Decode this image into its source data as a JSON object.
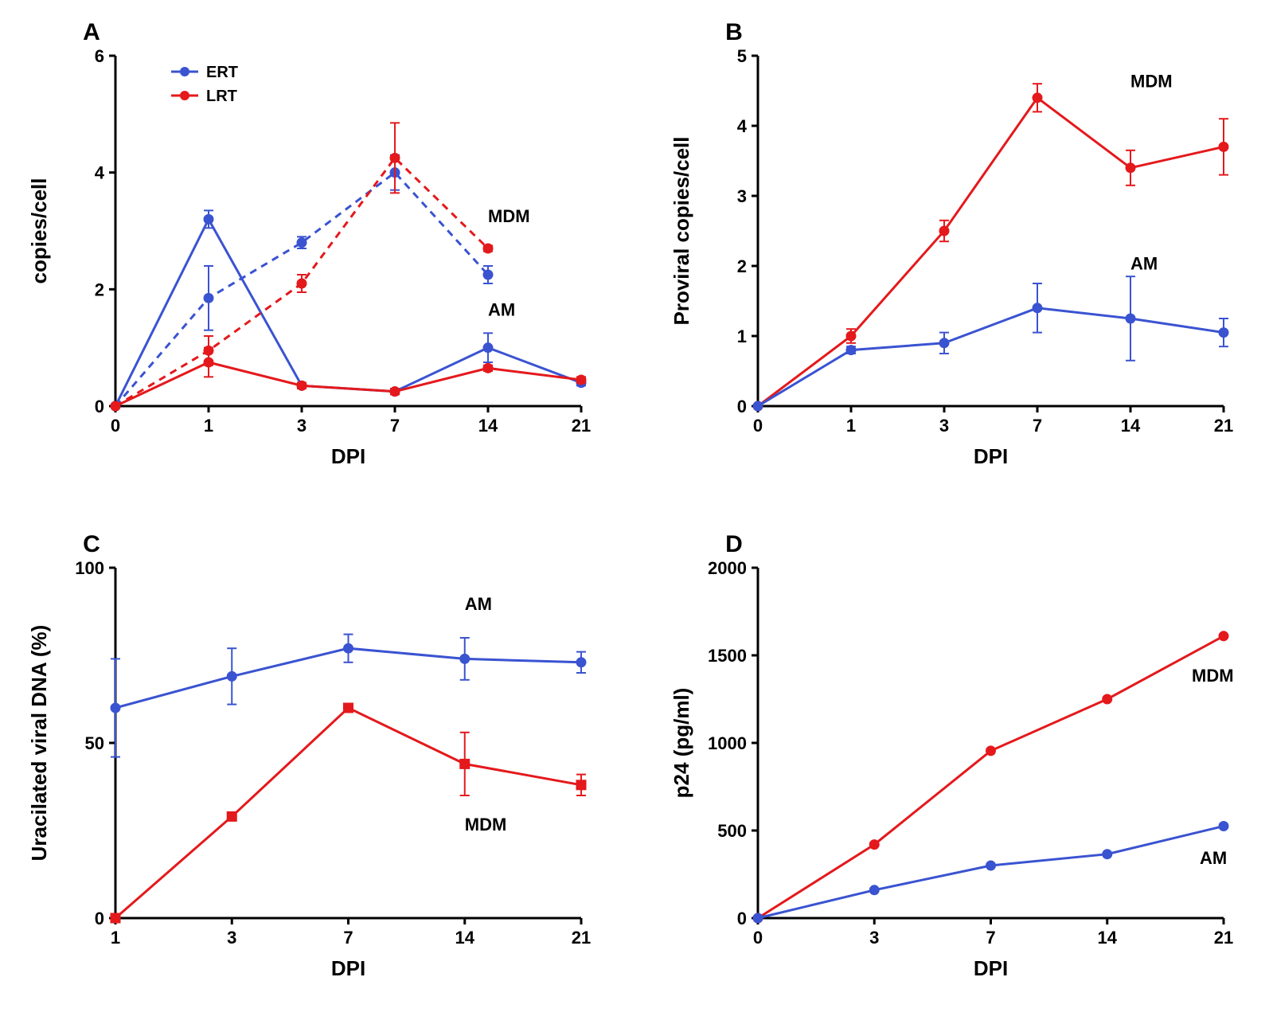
{
  "global": {
    "font_family": "Arial",
    "panel_label_fontsize": 30,
    "panel_label_weight": "bold",
    "axis_label_fontsize": 26,
    "axis_label_weight": "bold",
    "tick_fontsize": 22,
    "annotation_fontsize": 22,
    "annotation_weight": "bold",
    "legend_fontsize": 20,
    "legend_weight": "bold",
    "line_width": 3,
    "marker_radius": 6,
    "errorbar_width": 2,
    "errorbar_cap": 6,
    "axis_color": "#000000",
    "axis_width": 3,
    "tick_length": 8,
    "background": "#ffffff",
    "colors": {
      "blue": "#3a53d1",
      "red": "#e4191c"
    }
  },
  "panelA": {
    "label": "A",
    "xlabel": "DPI",
    "ylabel": "copies/cell",
    "x_categories": [
      0,
      1,
      3,
      7,
      14,
      21
    ],
    "ylim": [
      0,
      6
    ],
    "ytick_step": 2,
    "series": [
      {
        "name": "ERT_AM",
        "color": "#3a53d1",
        "dash": "solid",
        "marker": "circle",
        "x": [
          0,
          1,
          3,
          7,
          14,
          21
        ],
        "y": [
          0,
          3.2,
          0.35,
          0.25,
          1.0,
          0.4
        ],
        "err": [
          0,
          0.15,
          0.05,
          0.05,
          0.25,
          0.05
        ]
      },
      {
        "name": "LRT_AM",
        "color": "#e4191c",
        "dash": "solid",
        "marker": "circle",
        "x": [
          0,
          1,
          3,
          7,
          14,
          21
        ],
        "y": [
          0,
          0.75,
          0.35,
          0.25,
          0.65,
          0.45
        ],
        "err": [
          0,
          0.25,
          0.05,
          0.05,
          0.05,
          0.05
        ]
      },
      {
        "name": "ERT_MDM",
        "color": "#3a53d1",
        "dash": "dashed",
        "marker": "circle",
        "x": [
          0,
          1,
          3,
          7,
          14
        ],
        "y": [
          0,
          1.85,
          2.8,
          4.0,
          2.25
        ],
        "err": [
          0,
          0.55,
          0.1,
          0.3,
          0.15
        ]
      },
      {
        "name": "LRT_MDM",
        "color": "#e4191c",
        "dash": "dashed",
        "marker": "circle",
        "x": [
          0,
          1,
          3,
          7,
          14
        ],
        "y": [
          0,
          0.95,
          2.1,
          4.25,
          2.7
        ],
        "err": [
          0,
          0.25,
          0.15,
          0.6,
          0.05
        ]
      }
    ],
    "legend": {
      "items": [
        {
          "label": "ERT",
          "color": "#3a53d1"
        },
        {
          "label": "LRT",
          "color": "#e4191c"
        }
      ]
    },
    "annotations": [
      {
        "text": "MDM",
        "x_cat": 14,
        "y": 3.15
      },
      {
        "text": "AM",
        "x_cat": 14,
        "y": 1.55
      }
    ]
  },
  "panelB": {
    "label": "B",
    "xlabel": "DPI",
    "ylabel": "Proviral copies/cell",
    "x_categories": [
      0,
      1,
      3,
      7,
      14,
      21
    ],
    "ylim": [
      0,
      5
    ],
    "ytick_step": 1,
    "series": [
      {
        "name": "MDM",
        "color": "#e4191c",
        "dash": "solid",
        "marker": "circle",
        "x": [
          0,
          1,
          3,
          7,
          14,
          21
        ],
        "y": [
          0,
          1.0,
          2.5,
          4.4,
          3.4,
          3.7
        ],
        "err": [
          0,
          0.1,
          0.15,
          0.2,
          0.25,
          0.4
        ]
      },
      {
        "name": "AM",
        "color": "#3a53d1",
        "dash": "solid",
        "marker": "circle",
        "x": [
          0,
          1,
          3,
          7,
          14,
          21
        ],
        "y": [
          0,
          0.8,
          0.9,
          1.4,
          1.25,
          1.05
        ],
        "err": [
          0,
          0.05,
          0.15,
          0.35,
          0.6,
          0.2
        ]
      }
    ],
    "annotations": [
      {
        "text": "MDM",
        "x_cat": 14,
        "y": 4.55
      },
      {
        "text": "AM",
        "x_cat": 14,
        "y": 1.95
      }
    ]
  },
  "panelC": {
    "label": "C",
    "xlabel": "DPI",
    "ylabel": "Uracilated viral DNA (%)",
    "x_categories": [
      1,
      3,
      7,
      14,
      21
    ],
    "ylim": [
      0,
      100
    ],
    "ytick_step": 50,
    "series": [
      {
        "name": "AM",
        "color": "#3a53d1",
        "dash": "solid",
        "marker": "circle",
        "x": [
          1,
          3,
          7,
          14,
          21
        ],
        "y": [
          60,
          69,
          77,
          74,
          73
        ],
        "err": [
          14,
          8,
          4,
          6,
          3
        ]
      },
      {
        "name": "MDM",
        "color": "#e4191c",
        "dash": "solid",
        "marker": "square",
        "x": [
          1,
          3,
          7,
          14,
          21
        ],
        "y": [
          0,
          29,
          60,
          44,
          38
        ],
        "err": [
          0,
          0,
          0,
          9,
          3
        ]
      }
    ],
    "annotations": [
      {
        "text": "AM",
        "x_cat": 14,
        "y": 88
      },
      {
        "text": "MDM",
        "x_cat": 14,
        "y": 25
      }
    ]
  },
  "panelD": {
    "label": "D",
    "xlabel": "DPI",
    "ylabel": "p24 (pg/ml)",
    "x_categories": [
      0,
      3,
      7,
      14,
      21
    ],
    "ylim": [
      0,
      2000
    ],
    "ytick_step": 500,
    "series": [
      {
        "name": "MDM",
        "color": "#e4191c",
        "dash": "solid",
        "marker": "circle",
        "x": [
          0,
          3,
          7,
          14,
          21
        ],
        "y": [
          0,
          420,
          955,
          1250,
          1610
        ],
        "err": [
          0,
          0,
          0,
          0,
          0
        ]
      },
      {
        "name": "AM",
        "color": "#3a53d1",
        "dash": "solid",
        "marker": "circle",
        "x": [
          0,
          3,
          7,
          14,
          21
        ],
        "y": [
          0,
          160,
          300,
          365,
          525
        ],
        "err": [
          0,
          0,
          0,
          0,
          0
        ]
      }
    ],
    "annotations": [
      {
        "text": "MDM",
        "x_cat": 21,
        "y": 1350,
        "dx": -40
      },
      {
        "text": "AM",
        "x_cat": 21,
        "y": 310,
        "dx": -30
      }
    ]
  }
}
